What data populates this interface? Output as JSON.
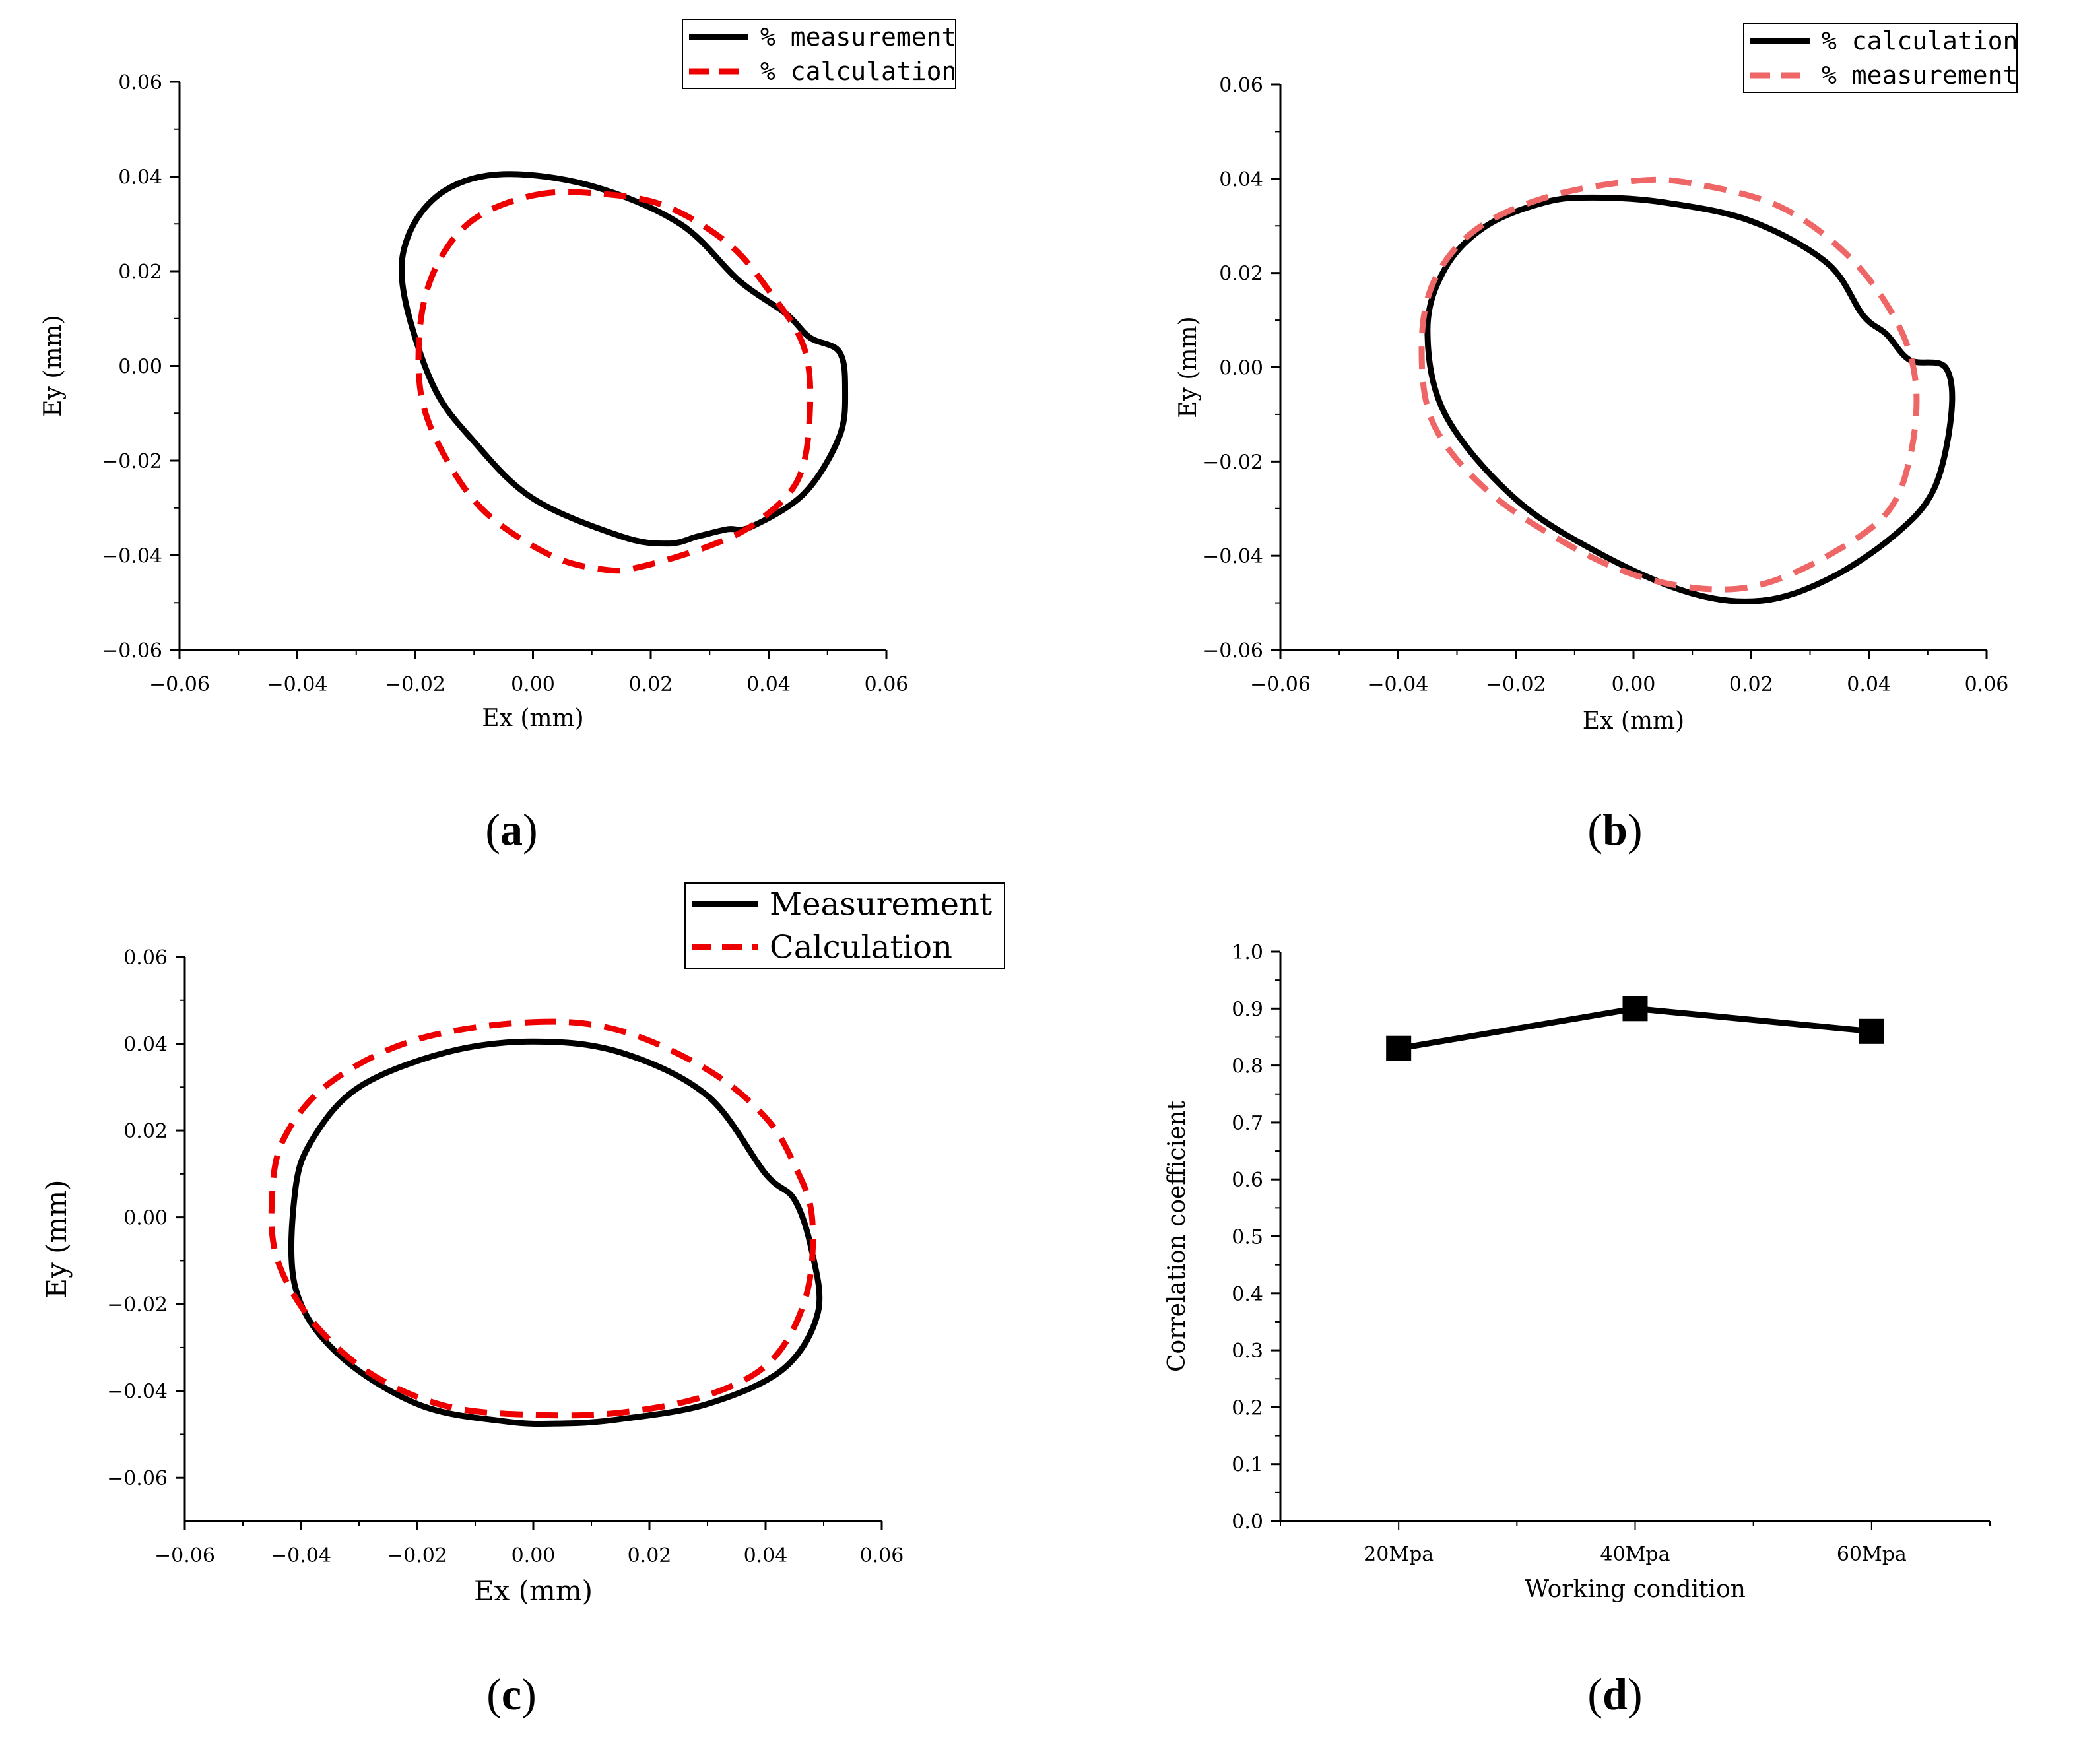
{
  "colors": {
    "measurement": "#000000",
    "calculation_red": "#ee0000",
    "calculation_pink": "#ee6666"
  },
  "chart_data": [
    {
      "id": "a",
      "type": "line",
      "panel_label": "a",
      "xlabel": "Ex (mm)",
      "ylabel": "Ey (mm)",
      "xlim": [
        -0.06,
        0.06
      ],
      "ylim": [
        -0.06,
        0.06
      ],
      "xticks": [
        "−0.06",
        "−0.04",
        "−0.02",
        "0.00",
        "0.02",
        "0.04",
        "0.06"
      ],
      "yticks": [
        "−0.06",
        "−0.04",
        "−0.02",
        "0.00",
        "0.02",
        "0.04",
        "0.06"
      ],
      "legend": [
        "% measurement",
        "% calculation"
      ],
      "series": [
        {
          "name": "% measurement",
          "color": "#000000",
          "style": "solid",
          "points": [
            [
              -0.005,
              0.0405
            ],
            [
              0.01,
              0.038
            ],
            [
              0.025,
              0.03
            ],
            [
              0.035,
              0.018
            ],
            [
              0.043,
              0.011
            ],
            [
              0.047,
              0.006
            ],
            [
              0.052,
              0.003
            ],
            [
              0.053,
              -0.005
            ],
            [
              0.052,
              -0.015
            ],
            [
              0.046,
              -0.027
            ],
            [
              0.037,
              -0.034
            ],
            [
              0.033,
              -0.0345
            ],
            [
              0.028,
              -0.036
            ],
            [
              0.023,
              -0.0375
            ],
            [
              0.015,
              -0.036
            ],
            [
              0.0,
              -0.028
            ],
            [
              -0.01,
              -0.016
            ],
            [
              -0.017,
              -0.004
            ],
            [
              -0.022,
              0.016
            ],
            [
              -0.021,
              0.028
            ],
            [
              -0.015,
              0.037
            ],
            [
              -0.005,
              0.0405
            ]
          ]
        },
        {
          "name": "% calculation",
          "color": "#ee0000",
          "style": "dashed",
          "points": [
            [
              0.0,
              0.036
            ],
            [
              0.01,
              0.0365
            ],
            [
              0.022,
              0.034
            ],
            [
              0.033,
              0.026
            ],
            [
              0.04,
              0.016
            ],
            [
              0.046,
              0.004
            ],
            [
              0.047,
              -0.01
            ],
            [
              0.045,
              -0.024
            ],
            [
              0.038,
              -0.033
            ],
            [
              0.03,
              -0.038
            ],
            [
              0.018,
              -0.0425
            ],
            [
              0.012,
              -0.043
            ],
            [
              0.003,
              -0.04
            ],
            [
              -0.008,
              -0.031
            ],
            [
              -0.015,
              -0.019
            ],
            [
              -0.019,
              -0.006
            ],
            [
              -0.019,
              0.01
            ],
            [
              -0.016,
              0.022
            ],
            [
              -0.01,
              0.031
            ],
            [
              0.0,
              0.036
            ]
          ]
        }
      ]
    },
    {
      "id": "b",
      "type": "line",
      "panel_label": "b",
      "xlabel": "Ex (mm)",
      "ylabel": "Ey (mm)",
      "xlim": [
        -0.06,
        0.06
      ],
      "ylim": [
        -0.06,
        0.06
      ],
      "xticks": [
        "−0.06",
        "−0.04",
        "−0.02",
        "0.00",
        "0.02",
        "0.04",
        "0.06"
      ],
      "yticks": [
        "−0.06",
        "−0.04",
        "−0.02",
        "0.00",
        "0.02",
        "0.04",
        "0.06"
      ],
      "legend": [
        "% calculation",
        "% measurement"
      ],
      "series": [
        {
          "name": "% calculation",
          "color": "#000000",
          "style": "solid",
          "points": [
            [
              -0.007,
              0.036
            ],
            [
              0.005,
              0.035
            ],
            [
              0.02,
              0.031
            ],
            [
              0.033,
              0.022
            ],
            [
              0.039,
              0.011
            ],
            [
              0.043,
              0.007
            ],
            [
              0.047,
              0.0015
            ],
            [
              0.053,
              0.0
            ],
            [
              0.054,
              -0.01
            ],
            [
              0.051,
              -0.026
            ],
            [
              0.044,
              -0.036
            ],
            [
              0.033,
              -0.045
            ],
            [
              0.022,
              -0.0495
            ],
            [
              0.01,
              -0.048
            ],
            [
              -0.005,
              -0.04
            ],
            [
              -0.02,
              -0.028
            ],
            [
              -0.032,
              -0.01
            ],
            [
              -0.035,
              0.008
            ],
            [
              -0.032,
              0.021
            ],
            [
              -0.025,
              0.03
            ],
            [
              -0.015,
              0.035
            ],
            [
              -0.007,
              0.036
            ]
          ]
        },
        {
          "name": "% measurement",
          "color": "#ee6666",
          "style": "dashed",
          "points": [
            [
              0.0,
              0.0395
            ],
            [
              0.01,
              0.039
            ],
            [
              0.025,
              0.034
            ],
            [
              0.037,
              0.023
            ],
            [
              0.045,
              0.009
            ],
            [
              0.048,
              -0.004
            ],
            [
              0.047,
              -0.019
            ],
            [
              0.043,
              -0.031
            ],
            [
              0.033,
              -0.04
            ],
            [
              0.022,
              -0.046
            ],
            [
              0.012,
              -0.047
            ],
            [
              0.0,
              -0.044
            ],
            [
              -0.012,
              -0.037
            ],
            [
              -0.025,
              -0.026
            ],
            [
              -0.034,
              -0.012
            ],
            [
              -0.036,
              0.004
            ],
            [
              -0.034,
              0.018
            ],
            [
              -0.027,
              0.029
            ],
            [
              -0.015,
              0.036
            ],
            [
              0.0,
              0.0395
            ]
          ]
        }
      ]
    },
    {
      "id": "c",
      "type": "line",
      "panel_label": "c",
      "xlabel": "Ex (mm)",
      "ylabel": "Ey (mm)",
      "xlim": [
        -0.06,
        0.06
      ],
      "ylim": [
        -0.07,
        0.06
      ],
      "xticks": [
        "−0.06",
        "−0.04",
        "−0.02",
        "0.00",
        "0.02",
        "0.04",
        "0.06"
      ],
      "yticks": [
        "−0.06",
        "−0.04",
        "−0.02",
        "0.00",
        "0.02",
        "0.04",
        "0.06"
      ],
      "legend": [
        "Measurement",
        "Calculation"
      ],
      "series": [
        {
          "name": "Measurement",
          "color": "#000000",
          "style": "solid",
          "points": [
            [
              0.0,
              0.0405
            ],
            [
              0.015,
              0.038
            ],
            [
              0.03,
              0.028
            ],
            [
              0.04,
              0.01
            ],
            [
              0.045,
              0.004
            ],
            [
              0.048,
              -0.008
            ],
            [
              0.049,
              -0.022
            ],
            [
              0.043,
              -0.035
            ],
            [
              0.03,
              -0.043
            ],
            [
              0.015,
              -0.0465
            ],
            [
              0.005,
              -0.0475
            ],
            [
              -0.005,
              -0.047
            ],
            [
              -0.02,
              -0.043
            ],
            [
              -0.034,
              -0.031
            ],
            [
              -0.041,
              -0.016
            ],
            [
              -0.041,
              0.006
            ],
            [
              -0.038,
              0.018
            ],
            [
              -0.03,
              0.03
            ],
            [
              -0.015,
              0.038
            ],
            [
              0.0,
              0.0405
            ]
          ]
        },
        {
          "name": "Calculation",
          "color": "#ee0000",
          "style": "dashed",
          "points": [
            [
              0.0,
              0.045
            ],
            [
              0.015,
              0.043
            ],
            [
              0.03,
              0.034
            ],
            [
              0.04,
              0.023
            ],
            [
              0.045,
              0.012
            ],
            [
              0.048,
              0.0
            ],
            [
              0.047,
              -0.018
            ],
            [
              0.041,
              -0.033
            ],
            [
              0.03,
              -0.041
            ],
            [
              0.015,
              -0.045
            ],
            [
              0.0,
              -0.0455
            ],
            [
              -0.015,
              -0.0435
            ],
            [
              -0.028,
              -0.036
            ],
            [
              -0.038,
              -0.024
            ],
            [
              -0.044,
              -0.01
            ],
            [
              -0.045,
              0.004
            ],
            [
              -0.043,
              0.018
            ],
            [
              -0.035,
              0.031
            ],
            [
              -0.02,
              0.041
            ],
            [
              0.0,
              0.045
            ]
          ]
        }
      ]
    },
    {
      "id": "d",
      "type": "line",
      "panel_label": "d",
      "xlabel": "Working condition",
      "ylabel": "Correlation coefficient",
      "categories": [
        "20Mpa",
        "40Mpa",
        "60Mpa"
      ],
      "values": [
        0.83,
        0.9,
        0.86
      ],
      "ylim": [
        0.0,
        1.0
      ],
      "yticks": [
        "0.0",
        "0.1",
        "0.2",
        "0.3",
        "0.4",
        "0.5",
        "0.6",
        "0.7",
        "0.8",
        "0.9",
        "1.0"
      ],
      "marker": "square",
      "color": "#000000"
    }
  ]
}
